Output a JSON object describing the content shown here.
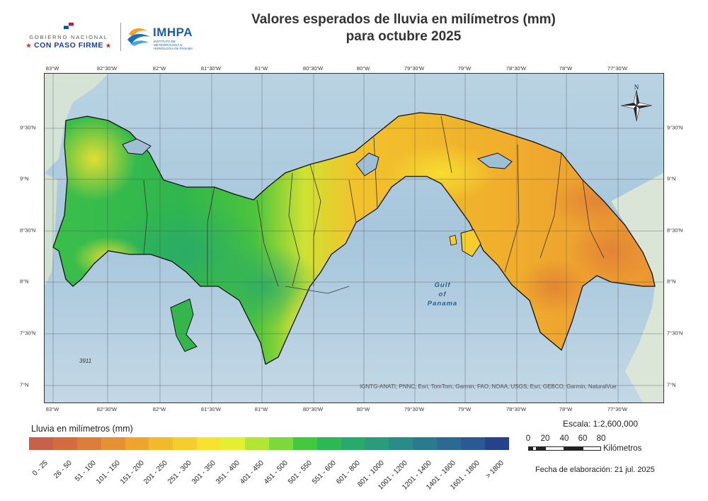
{
  "header": {
    "title_line1": "Valores esperados de lluvia en milímetros (mm)",
    "title_line2": "para octubre 2025",
    "logo_gobierno_line1": "GOBIERNO NACIONAL",
    "logo_gobierno_line2": "CON PASO FIRME",
    "logo_imhpa": "IMHPA",
    "logo_imhpa_sub": "INSTITUTO DE METEOROLOGÍA E HIDROLOGÍA DE PANAMÁ"
  },
  "map": {
    "top_longitudes": [
      "83°W",
      "82°30'W",
      "82°W",
      "81°30'W",
      "81°W",
      "80°30'W",
      "80°W",
      "79°30'W",
      "79°W",
      "78°30'W",
      "78°W",
      "77°30'W"
    ],
    "bottom_longitudes": [
      "83°W",
      "82°30'W",
      "82°W",
      "81°30'W",
      "81°W",
      "80°30'W",
      "80°W",
      "79°30'W",
      "79°W",
      "78°30'W",
      "78°W",
      "77°30'W"
    ],
    "latitudes": [
      "9°30'N",
      "9°N",
      "8°30'N",
      "8°N",
      "7°30'N",
      "7°N"
    ],
    "gulf_label": [
      "Gulf",
      "of",
      "Panama"
    ],
    "depth_label": "3911",
    "north_label": "N",
    "attribution": "IGNTG-ANATI, PNNC, Esri, TomTom, Garmin, FAO, NOAA, USGS, Esri, GEBCO, Garmin, NaturalVue"
  },
  "legend": {
    "title": "Lluvia en milímetros (mm)",
    "classes": [
      {
        "label": "0 - 25",
        "color": "#c8604a"
      },
      {
        "label": "26 - 50",
        "color": "#d36c3f"
      },
      {
        "label": "51 - 100",
        "color": "#de7c3a"
      },
      {
        "label": "101 - 150",
        "color": "#e89134"
      },
      {
        "label": "151 - 200",
        "color": "#eea52e"
      },
      {
        "label": "201 - 250",
        "color": "#f2b92c"
      },
      {
        "label": "251 - 300",
        "color": "#f6cd2c"
      },
      {
        "label": "301 - 350",
        "color": "#f8e230"
      },
      {
        "label": "351 - 400",
        "color": "#e4ef30"
      },
      {
        "label": "401 - 450",
        "color": "#b3e634"
      },
      {
        "label": "451 - 500",
        "color": "#7cd93a"
      },
      {
        "label": "501 - 550",
        "color": "#43c83e"
      },
      {
        "label": "551 - 600",
        "color": "#2cb852"
      },
      {
        "label": "601 - 800",
        "color": "#2aaa6a"
      },
      {
        "label": "801 - 1000",
        "color": "#2a9c7c"
      },
      {
        "label": "1001 - 1200",
        "color": "#2a8c88"
      },
      {
        "label": "1201 - 1400",
        "color": "#2a7b8e"
      },
      {
        "label": "1401 - 1600",
        "color": "#2b6a92"
      },
      {
        "label": "1601 - 1800",
        "color": "#2b5896"
      },
      {
        "label": "> 1800",
        "color": "#26428a"
      }
    ]
  },
  "scale": {
    "label": "Escala: 1:2,600,000",
    "ticks": [
      "0",
      "20",
      "40",
      "60",
      "80"
    ],
    "units": "Kilómetros"
  },
  "fecha": "Fecha de elaboración: 21 jul. 2025"
}
